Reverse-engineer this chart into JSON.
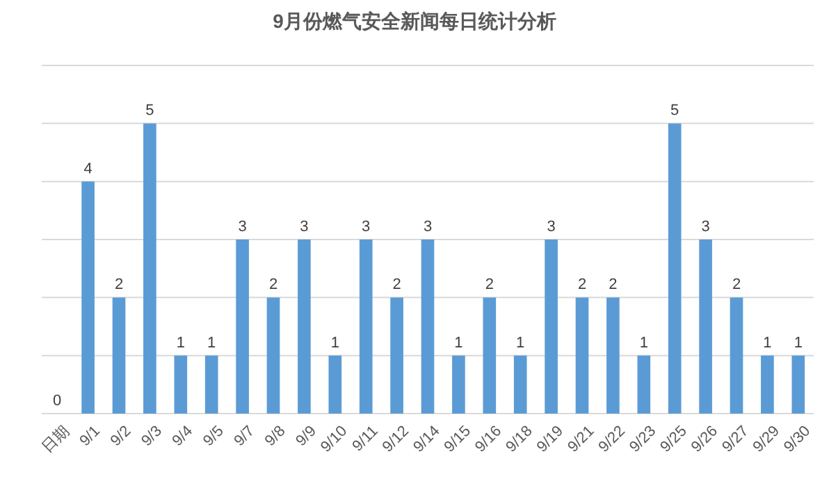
{
  "chart_data": {
    "type": "bar",
    "title": "9月份燃气安全新闻每日统计分析",
    "categories": [
      "日期",
      "9/1",
      "9/2",
      "9/3",
      "9/4",
      "9/5",
      "9/7",
      "9/8",
      "9/9",
      "9/10",
      "9/11",
      "9/12",
      "9/14",
      "9/15",
      "9/16",
      "9/18",
      "9/19",
      "9/21",
      "9/22",
      "9/23",
      "9/25",
      "9/26",
      "9/27",
      "9/29",
      "9/30"
    ],
    "values": [
      0,
      4,
      2,
      5,
      1,
      1,
      3,
      2,
      3,
      1,
      3,
      2,
      3,
      1,
      2,
      1,
      3,
      2,
      2,
      1,
      5,
      3,
      2,
      1,
      1
    ],
    "color": "#5b9bd5",
    "data_labels": true,
    "ylim": [
      0,
      6
    ],
    "yticks": [
      {
        "value": 0,
        "label": null
      },
      {
        "value": 1,
        "label": null
      },
      {
        "value": 2,
        "label": null
      },
      {
        "value": 3,
        "label": null
      },
      {
        "value": 4,
        "label": null
      },
      {
        "value": 5,
        "label": null
      },
      {
        "value": 6,
        "label": null
      }
    ],
    "grid": "y",
    "tick_labels": "x"
  }
}
